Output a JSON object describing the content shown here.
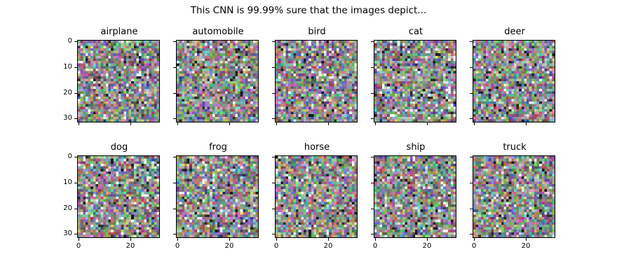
{
  "figure": {
    "title": "This CNN is 99.99% sure that the images depict..."
  },
  "panels": [
    {
      "label": "airplane"
    },
    {
      "label": "automobile"
    },
    {
      "label": "bird"
    },
    {
      "label": "cat"
    },
    {
      "label": "deer"
    },
    {
      "label": "dog"
    },
    {
      "label": "frog"
    },
    {
      "label": "horse"
    },
    {
      "label": "ship"
    },
    {
      "label": "truck"
    }
  ],
  "axes": {
    "y_tick_labels": [
      "0",
      "10",
      "20",
      "30"
    ],
    "x_tick_labels": [
      "0",
      "20"
    ]
  },
  "image": {
    "pixels_per_side": 32,
    "base_color": "#8a8a88"
  }
}
